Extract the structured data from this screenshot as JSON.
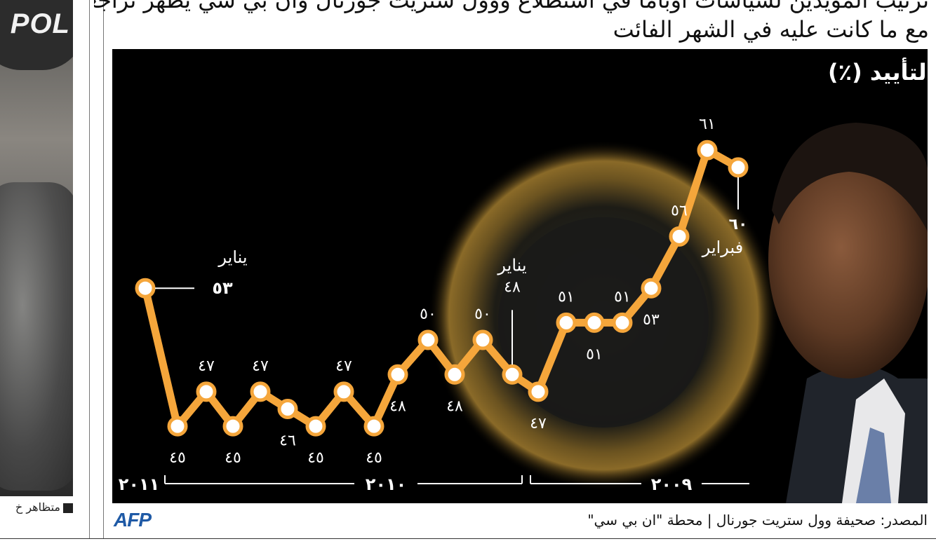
{
  "heading": {
    "line1": "ترتيب المؤيدين لسياسات أوباما في استطلاع ووول ستريت جورنال وان بي سي يظهر تراجعا في الشعبية مقارنة",
    "line2": "مع ما كانت عليه في الشهر الفائت"
  },
  "left_photo": {
    "overlay_text": "POL",
    "caption": "متظاهر خ"
  },
  "source": {
    "text": "المصدر: صحيفة وول ستريت جورنال | محطة \"ان بي سي\"",
    "logo": "AFP",
    "logo_color": "#1f5aa6"
  },
  "chart_data": {
    "type": "line",
    "title": "نسبة التأييد (٪)",
    "x_direction": "right-to-left (newest on the left)",
    "values": [
      53,
      45,
      47,
      45,
      47,
      46,
      45,
      47,
      45,
      48,
      50,
      48,
      50,
      48,
      47,
      51,
      51,
      51,
      53,
      56,
      61,
      60
    ],
    "value_labels": [
      "٥٣",
      "٤٥",
      "٤٧",
      "٤٥",
      "٤٧",
      "٤٦",
      "٤٥",
      "٤٧",
      "٤٥",
      "٤٨",
      "٥٠",
      "٤٨",
      "٥٠",
      "٤٨",
      "٤٧",
      "٥١",
      "٥١",
      "٥١",
      "٥٣",
      "٥٦",
      "٦١",
      "٦٠"
    ],
    "annotations": [
      {
        "index": 0,
        "month": "يناير",
        "value_label": "٥٣"
      },
      {
        "index": 13,
        "month": "يناير",
        "value_label": "٤٨"
      },
      {
        "index": 21,
        "month": "فبراير",
        "value_label": "٦٠"
      }
    ],
    "years": [
      {
        "label": "٢٠١١"
      },
      {
        "label": "٢٠١٠"
      },
      {
        "label": "٢٠٠٩"
      }
    ],
    "ylim": [
      42,
      63
    ],
    "line_color": "#f5a63b",
    "marker_fill": "#ffffff",
    "background": "#000000"
  }
}
